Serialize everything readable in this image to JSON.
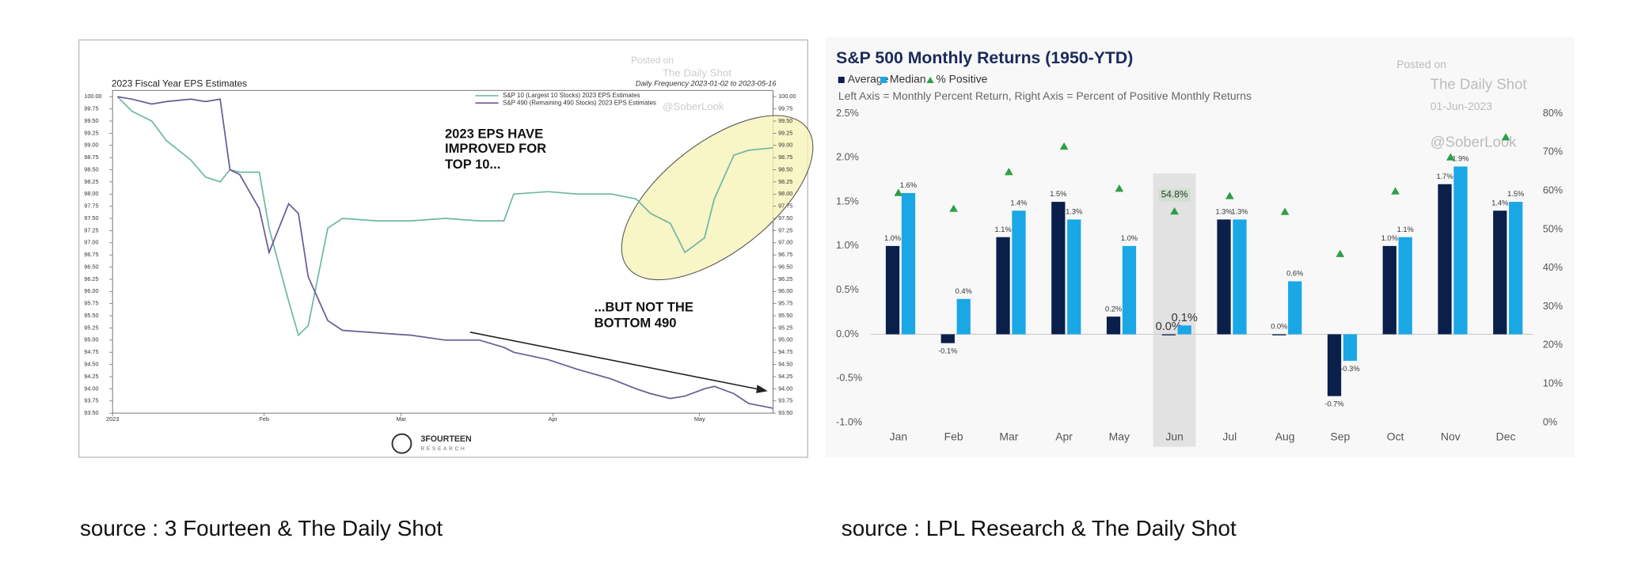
{
  "chart_data": [
    {
      "type": "line",
      "title": "2023 Fiscal Year EPS Estimates",
      "subtitle": "Daily Frequency 2023-01-02 to 2023-05-16",
      "x": [
        "2023-01-02",
        "2023-01-05",
        "2023-01-09",
        "2023-01-12",
        "2023-01-17",
        "2023-01-20",
        "2023-01-23",
        "2023-01-25",
        "2023-01-27",
        "2023-01-31",
        "2023-02-02",
        "2023-02-06",
        "2023-02-08",
        "2023-02-10",
        "2023-02-14",
        "2023-02-17",
        "2023-02-24",
        "2023-03-03",
        "2023-03-10",
        "2023-03-17",
        "2023-03-22",
        "2023-03-24",
        "2023-03-31",
        "2023-04-06",
        "2023-04-13",
        "2023-04-18",
        "2023-04-21",
        "2023-04-25",
        "2023-04-28",
        "2023-05-02",
        "2023-05-04",
        "2023-05-08",
        "2023-05-11",
        "2023-05-16"
      ],
      "series": [
        {
          "name": "S&P 10 (Largest 10 Stocks) 2023 EPS Estimates",
          "color": "#6fb8a4",
          "values": [
            100.0,
            99.7,
            99.5,
            99.1,
            98.7,
            98.35,
            98.25,
            98.5,
            98.45,
            98.45,
            97.3,
            95.8,
            95.1,
            95.3,
            97.3,
            97.5,
            97.45,
            97.45,
            97.5,
            97.45,
            97.45,
            98.0,
            98.05,
            98.0,
            98.0,
            97.9,
            97.6,
            97.4,
            96.8,
            97.1,
            97.9,
            98.8,
            98.9,
            98.95
          ]
        },
        {
          "name": "S&P 490 (Remaining 490 Stocks) 2023 EPS Estimates",
          "color": "#6b5b95",
          "values": [
            100.0,
            99.95,
            99.85,
            99.9,
            99.95,
            99.9,
            99.95,
            98.5,
            98.4,
            97.7,
            96.8,
            97.8,
            97.6,
            96.3,
            95.4,
            95.2,
            95.15,
            95.1,
            95.0,
            95.0,
            94.85,
            94.75,
            94.6,
            94.4,
            94.2,
            94.0,
            93.9,
            93.8,
            93.85,
            94.0,
            94.05,
            93.9,
            93.7,
            93.6
          ]
        }
      ],
      "xlim": [
        "2023-01-01",
        "2023-05-16"
      ],
      "xticks": [
        {
          "value": "2023-01-01",
          "label": "2023"
        },
        {
          "value": "2023-02-01",
          "label": "Feb"
        },
        {
          "value": "2023-03-01",
          "label": "Mar"
        },
        {
          "value": "2023-04-01",
          "label": "Apr"
        },
        {
          "value": "2023-05-01",
          "label": "May"
        }
      ],
      "ylim": [
        93.5,
        100.0
      ],
      "yticks": [
        {
          "value": 93.5,
          "label": "93.50"
        },
        {
          "value": 93.75,
          "label": "93.75"
        },
        {
          "value": 94,
          "label": "94.00"
        },
        {
          "value": 94.25,
          "label": "94.25"
        },
        {
          "value": 94.5,
          "label": "94.50"
        },
        {
          "value": 94.75,
          "label": "94.75"
        },
        {
          "value": 95,
          "label": "95.00"
        },
        {
          "value": 95.25,
          "label": "95.25"
        },
        {
          "value": 95.5,
          "label": "95.50"
        },
        {
          "value": 95.75,
          "label": "95.75"
        },
        {
          "value": 96,
          "label": "96.00"
        },
        {
          "value": 96.25,
          "label": "96.25"
        },
        {
          "value": 96.5,
          "label": "96.50"
        },
        {
          "value": 96.75,
          "label": "96.75"
        },
        {
          "value": 97,
          "label": "97.00"
        },
        {
          "value": 97.25,
          "label": "97.25"
        },
        {
          "value": 97.5,
          "label": "97.50"
        },
        {
          "value": 97.75,
          "label": "97.75"
        },
        {
          "value": 98,
          "label": "98.00"
        },
        {
          "value": 98.25,
          "label": "98.25"
        },
        {
          "value": 98.5,
          "label": "98.50"
        },
        {
          "value": 98.75,
          "label": "98.75"
        },
        {
          "value": 99,
          "label": "99.00"
        },
        {
          "value": 99.25,
          "label": "99.25"
        },
        {
          "value": 99.5,
          "label": "99.50"
        },
        {
          "value": 99.75,
          "label": "99.75"
        },
        {
          "value": 100,
          "label": "100.00"
        }
      ],
      "annotations": [
        "2023 EPS HAVE",
        "IMPROVED FOR",
        "TOP 10...",
        "...BUT NOT THE",
        "BOTTOM 490"
      ],
      "watermark": [
        "Posted on",
        "The Daily Shot",
        "@SoberLook"
      ],
      "logo": [
        "3FOURTEEN",
        "RESEARCH"
      ]
    },
    {
      "type": "bar",
      "title": "S&P 500 Monthly Returns (1950-YTD)",
      "subtitle": "Left Axis = Monthly Percent Return, Right Axis = Percent of Positive Monthly Returns",
      "categories": [
        "Jan",
        "Feb",
        "Mar",
        "Apr",
        "May",
        "Jun",
        "Jul",
        "Aug",
        "Sep",
        "Oct",
        "Nov",
        "Dec"
      ],
      "highlight": "Jun",
      "series": [
        {
          "name": "Average",
          "color": "#0b1f4b",
          "values": [
            1.0,
            -0.1,
            1.1,
            1.5,
            0.2,
            0.0,
            1.3,
            0.0,
            -0.7,
            1.0,
            1.7,
            1.4
          ],
          "value_labels": [
            "1.0%",
            "-0.1%",
            "1.1%",
            "1.5%",
            "0.2%",
            "0.0%",
            "1.3%",
            "0.0%",
            "-0.7%",
            "1.0%",
            "1.7%",
            "1.4%"
          ]
        },
        {
          "name": "Median",
          "color": "#1aa7e6",
          "values": [
            1.6,
            0.4,
            1.4,
            1.3,
            1.0,
            0.1,
            1.3,
            0.6,
            -0.3,
            1.1,
            1.9,
            1.5
          ],
          "value_labels": [
            "1.6%",
            "0.4%",
            "1.4%",
            "1.3%",
            "1.0%",
            "0.1%",
            "1.3%",
            "0.6%",
            "-0.3%",
            "1.1%",
            "1.9%",
            "1.5%"
          ]
        },
        {
          "name": "% Positive",
          "color": "#2e9e4a",
          "axis": "y2",
          "values": [
            59.6,
            55.5,
            65,
            71.6,
            60.7,
            54.8,
            58.8,
            54.7,
            43.8,
            60,
            68.8,
            74
          ],
          "value_labels": [
            null,
            null,
            null,
            null,
            null,
            "54.8%",
            null,
            null,
            null,
            null,
            null,
            null
          ]
        }
      ],
      "ylim": [
        -1.0,
        2.5
      ],
      "yticks": [
        {
          "value": -1,
          "label": "-1.0%"
        },
        {
          "value": -0.5,
          "label": "-0.5%"
        },
        {
          "value": 0,
          "label": "0.0%"
        },
        {
          "value": 0.5,
          "label": "0.5%"
        },
        {
          "value": 1,
          "label": "1.0%"
        },
        {
          "value": 1.5,
          "label": "1.5%"
        },
        {
          "value": 2,
          "label": "2.0%"
        },
        {
          "value": 2.5,
          "label": "2.5%"
        }
      ],
      "y2lim": [
        0,
        80
      ],
      "y2ticks": [
        {
          "value": 0,
          "label": "0%"
        },
        {
          "value": 10,
          "label": "10%"
        },
        {
          "value": 20,
          "label": "20%"
        },
        {
          "value": 30,
          "label": "30%"
        },
        {
          "value": 40,
          "label": "40%"
        },
        {
          "value": 50,
          "label": "50%"
        },
        {
          "value": 60,
          "label": "60%"
        },
        {
          "value": 70,
          "label": "70%"
        },
        {
          "value": 80,
          "label": "80%"
        }
      ],
      "watermark": [
        "Posted on",
        "The Daily Shot",
        "01-Jun-2023",
        "@SoberLook"
      ]
    }
  ],
  "captions": [
    "source : 3 Fourteen & The Daily Shot",
    "source : LPL Research & The Daily Shot"
  ]
}
